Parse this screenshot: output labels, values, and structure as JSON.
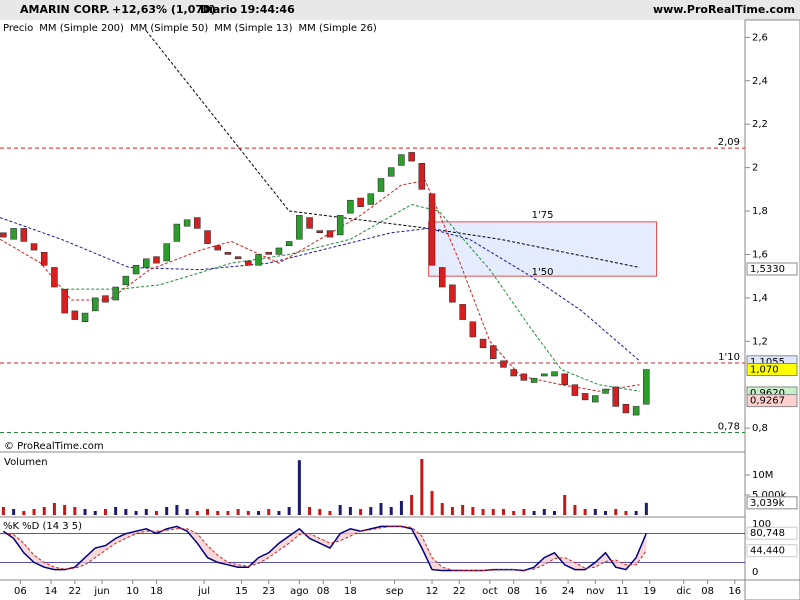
{
  "chart_data": [
    {
      "type": "candlestick",
      "title": "AMARIN CORP.",
      "subtitle": "+12,63% (1,070)",
      "period": "Diario",
      "time": "19:44:46",
      "source": "www.ProRealTime.com",
      "price_label": "Precio",
      "watermark": "© ProRealTime.com",
      "x": [
        1,
        4,
        7,
        10,
        13,
        16,
        19,
        22,
        25,
        28,
        31,
        34,
        37,
        40,
        43,
        46,
        49,
        52,
        55,
        58,
        61,
        64,
        67,
        70,
        73,
        76,
        79,
        82,
        85,
        88,
        91,
        94,
        97,
        100,
        103,
        106,
        109,
        112,
        115,
        118,
        121,
        124,
        127,
        130,
        133,
        136,
        139,
        142,
        145,
        148,
        151,
        154,
        157,
        160,
        163,
        166,
        169,
        172,
        175,
        178,
        181,
        184,
        187,
        190
      ],
      "open": [
        1.7,
        1.67,
        1.72,
        1.65,
        1.61,
        1.54,
        1.44,
        1.34,
        1.29,
        1.34,
        1.41,
        1.39,
        1.46,
        1.51,
        1.54,
        1.59,
        1.57,
        1.66,
        1.73,
        1.77,
        1.71,
        1.64,
        1.61,
        1.59,
        1.57,
        1.55,
        1.61,
        1.6,
        1.64,
        1.67,
        1.77,
        1.71,
        1.71,
        1.69,
        1.79,
        1.86,
        1.83,
        1.89,
        1.96,
        2.01,
        2.07,
        2.02,
        1.88,
        1.54,
        1.46,
        1.37,
        1.29,
        1.21,
        1.18,
        1.11,
        1.07,
        1.05,
        1.01,
        1.04,
        1.04,
        1.05,
        1.0,
        0.96,
        0.92,
        0.96,
        0.99,
        0.91,
        0.86,
        0.91
      ],
      "close": [
        1.68,
        1.72,
        1.66,
        1.62,
        1.55,
        1.45,
        1.33,
        1.3,
        1.33,
        1.4,
        1.38,
        1.45,
        1.5,
        1.55,
        1.58,
        1.56,
        1.65,
        1.74,
        1.76,
        1.72,
        1.65,
        1.62,
        1.6,
        1.58,
        1.55,
        1.6,
        1.6,
        1.63,
        1.66,
        1.78,
        1.72,
        1.7,
        1.68,
        1.78,
        1.85,
        1.82,
        1.88,
        1.95,
        2.0,
        2.06,
        2.03,
        1.9,
        1.55,
        1.45,
        1.38,
        1.3,
        1.22,
        1.17,
        1.12,
        1.08,
        1.04,
        1.02,
        1.03,
        1.05,
        1.06,
        1.0,
        0.95,
        0.93,
        0.95,
        0.98,
        0.9,
        0.87,
        0.9,
        1.07
      ],
      "up_color": "#2e9b2e",
      "down_color": "#d42020",
      "lines": [
        {
          "name": "MM (Simple 200)",
          "color": "#000000",
          "x": [
            43,
            85,
            126,
            147,
            188
          ],
          "values": [
            2.63,
            1.8,
            1.72,
            1.67,
            1.54
          ]
        },
        {
          "name": "MM (Simple 50)",
          "color": "#1a1aa0",
          "x": [
            0,
            18,
            38,
            59,
            79,
            97,
            115,
            126,
            138,
            156,
            171,
            188
          ],
          "values": [
            1.77,
            1.67,
            1.54,
            1.53,
            1.56,
            1.63,
            1.7,
            1.72,
            1.67,
            1.5,
            1.34,
            1.11
          ]
        },
        {
          "name": "MM (Simple 13)",
          "color": "#d42020",
          "x": [
            0,
            12,
            21,
            32,
            44,
            59,
            68,
            82,
            94,
            106,
            118,
            125,
            135,
            144,
            153,
            165,
            176,
            188
          ],
          "values": [
            1.67,
            1.56,
            1.39,
            1.39,
            1.53,
            1.62,
            1.66,
            1.56,
            1.67,
            1.78,
            1.92,
            1.94,
            1.57,
            1.2,
            1.04,
            1.0,
            0.97,
            1.0
          ]
        },
        {
          "name": "MM (Simple 26)",
          "color": "#1e8a3a",
          "x": [
            18,
            35,
            47,
            68,
            85,
            103,
            121,
            129,
            144,
            156,
            165,
            176,
            188
          ],
          "values": [
            1.44,
            1.44,
            1.46,
            1.56,
            1.6,
            1.67,
            1.83,
            1.8,
            1.53,
            1.26,
            1.07,
            1.0,
            0.97
          ]
        }
      ],
      "levels": [
        {
          "value": 2.09,
          "label": "2,09",
          "color": "#d42020"
        },
        {
          "value": 1.1,
          "label": "1'10",
          "color": "#d42020"
        },
        {
          "value": 0.78,
          "label": "0,78",
          "color": "#1e8a3a"
        }
      ],
      "zone": {
        "x": [
          126,
          193
        ],
        "y": [
          1.5,
          1.75
        ],
        "labels": [
          "1'50",
          "1'75"
        ]
      },
      "price_tags": [
        {
          "value": 1.533,
          "label": "1,5330",
          "color": "#ffffff"
        },
        {
          "value": 1.1055,
          "label": "1,1055",
          "color": "#dfe6ff"
        },
        {
          "value": 1.07,
          "label": "1,070",
          "color": "#ffff00"
        },
        {
          "value": 0.962,
          "label": "0,9620",
          "color": "#c8f0c8"
        },
        {
          "value": 0.9267,
          "label": "0,9267",
          "color": "#ffd0d0"
        }
      ],
      "xlim": [
        0,
        219
      ],
      "ylim": [
        0.69,
        2.68
      ],
      "yticks": [
        {
          "value": 2.6,
          "label": "2,6"
        },
        {
          "value": 2.4,
          "label": "2,4"
        },
        {
          "value": 2.2,
          "label": "2,2"
        },
        2,
        {
          "value": 1.8,
          "label": "1,8"
        },
        {
          "value": 1.6,
          "label": "1,6"
        },
        {
          "value": 1.4,
          "label": "1,4"
        },
        {
          "value": 1.2,
          "label": "1,2"
        },
        {
          "value": 0.8,
          "label": "0,8"
        }
      ],
      "xticks": [
        {
          "value": 6,
          "label": "06"
        },
        {
          "value": 15,
          "label": "14"
        },
        {
          "value": 22,
          "label": "22"
        },
        {
          "value": 30,
          "label": "jun"
        },
        {
          "value": 39,
          "label": "10"
        },
        {
          "value": 46,
          "label": "18"
        },
        {
          "value": 60,
          "label": "jul"
        },
        {
          "value": 71,
          "label": "15"
        },
        {
          "value": 79,
          "label": "23"
        },
        {
          "value": 88,
          "label": "ago"
        },
        {
          "value": 95,
          "label": "08"
        },
        {
          "value": 103,
          "label": "18"
        },
        {
          "value": 116,
          "label": "sep"
        },
        {
          "value": 127,
          "label": "12"
        },
        {
          "value": 135,
          "label": "22"
        },
        {
          "value": 144,
          "label": "oct"
        },
        {
          "value": 151,
          "label": "08"
        },
        {
          "value": 159,
          "label": "16"
        },
        {
          "value": 167,
          "label": "24"
        },
        {
          "value": 175,
          "label": "nov"
        },
        {
          "value": 183,
          "label": "11"
        },
        {
          "value": 191,
          "label": "19"
        },
        {
          "value": 201,
          "label": "dic"
        },
        {
          "value": 208,
          "label": "08"
        },
        {
          "value": 216,
          "label": "16"
        }
      ]
    },
    {
      "type": "bar",
      "title": "Volumen",
      "values": [
        2,
        1.5,
        1,
        1.5,
        2,
        3,
        2.5,
        2,
        1.5,
        1,
        1.5,
        2,
        1.5,
        1,
        1.5,
        1,
        2,
        2.5,
        1.5,
        1,
        1.5,
        1,
        1,
        1.5,
        1,
        1,
        1.5,
        1,
        2,
        13.7,
        2,
        1.5,
        1,
        2.5,
        2,
        1.5,
        2,
        3,
        2,
        3.5,
        5,
        14,
        6,
        3,
        2,
        2.5,
        2,
        1.5,
        1.5,
        1.5,
        1,
        1.5,
        1,
        1.5,
        1,
        5,
        2.5,
        1.5,
        1.5,
        1,
        1.5,
        1,
        1,
        3.039
      ],
      "up_color": "#1a1a6e",
      "down_color": "#c41818",
      "ylim": [
        0,
        15
      ],
      "yticks": [
        {
          "value": 10,
          "label": "10M"
        },
        {
          "value": 5,
          "label": "5,000k"
        }
      ],
      "last_label": {
        "value": 3.039,
        "label": "3,039k"
      }
    },
    {
      "type": "line",
      "title": "%K",
      "ylim": [
        -12.5,
        112.5
      ],
      "yticks": [
        0,
        100
      ],
      "levels": [
        80,
        20
      ],
      "series": [
        {
          "name": "%K",
          "color": "#000080",
          "values": [
            85,
            70,
            40,
            20,
            10,
            5,
            5,
            10,
            30,
            50,
            55,
            70,
            80,
            85,
            90,
            80,
            90,
            95,
            85,
            60,
            30,
            20,
            15,
            10,
            10,
            30,
            40,
            60,
            75,
            90,
            70,
            60,
            50,
            80,
            90,
            85,
            90,
            95,
            95,
            95,
            90,
            50,
            5,
            3,
            3,
            3,
            3,
            3,
            5,
            5,
            5,
            3,
            10,
            30,
            40,
            15,
            5,
            5,
            20,
            40,
            10,
            5,
            30,
            80.748
          ],
          "value_label": "80,748"
        },
        {
          "name": "%D (14 3 5)",
          "color": "#d42020",
          "values": [
            80,
            78,
            60,
            35,
            20,
            10,
            6,
            8,
            15,
            30,
            45,
            60,
            70,
            80,
            85,
            85,
            87,
            90,
            90,
            80,
            55,
            35,
            20,
            15,
            12,
            18,
            30,
            45,
            60,
            78,
            80,
            70,
            60,
            65,
            75,
            85,
            88,
            92,
            95,
            95,
            93,
            75,
            30,
            10,
            4,
            3,
            3,
            3,
            4,
            5,
            5,
            4,
            6,
            15,
            28,
            30,
            20,
            8,
            10,
            22,
            25,
            15,
            15,
            44.44
          ],
          "value_label": "44,440"
        }
      ]
    }
  ]
}
